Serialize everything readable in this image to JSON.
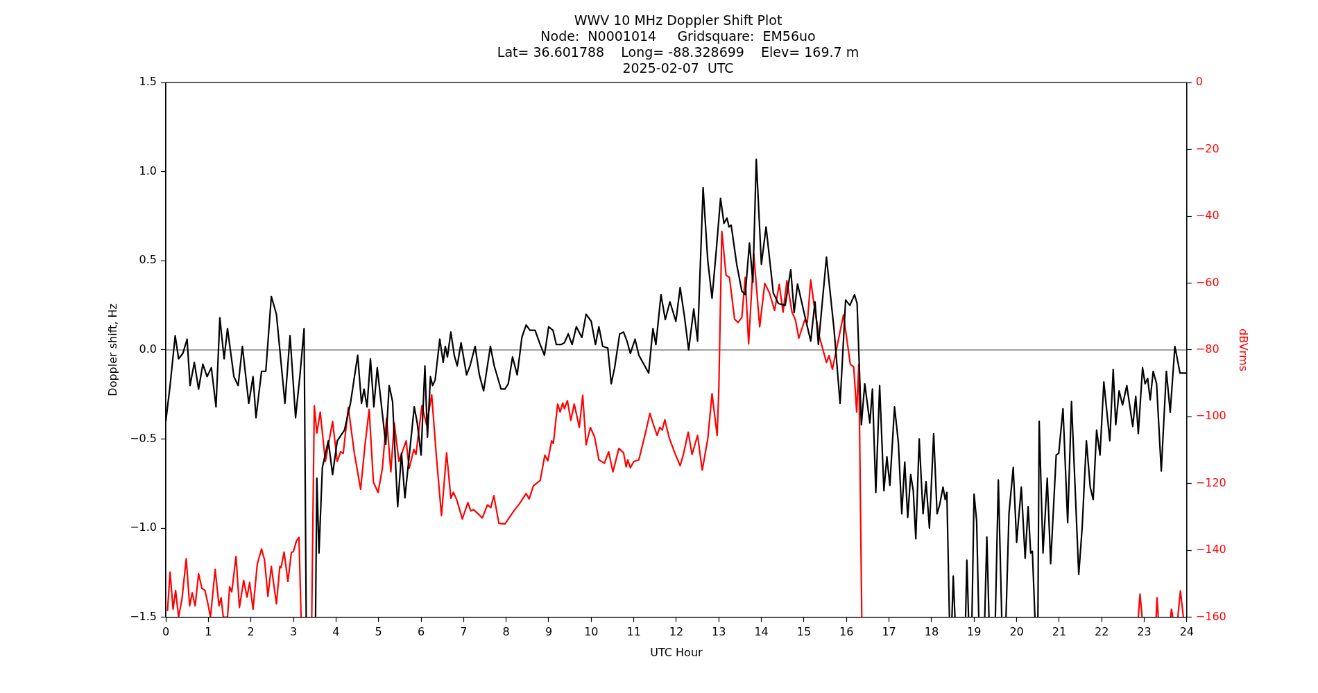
{
  "chart_data": {
    "type": "line",
    "title": "WWV 10 MHz Doppler Shift Plot\nNode:  N0001014     Gridsquare:  EM56uo\nLat= 36.601788    Long= -88.328699    Elev= 169.7 m\n2025-02-07  UTC",
    "xlabel": "UTC Hour",
    "ylabel": "Doppler shift, Hz",
    "y2label": "dBVrms",
    "xlim": [
      0,
      24
    ],
    "xticks": [
      0,
      1,
      2,
      3,
      4,
      5,
      6,
      7,
      8,
      9,
      10,
      11,
      12,
      13,
      14,
      15,
      16,
      17,
      18,
      19,
      20,
      21,
      22,
      23,
      24
    ],
    "ylim": [
      -1.5,
      1.5
    ],
    "yticks": [
      {
        "value": -1.5,
        "label": "−1.5"
      },
      {
        "value": -1,
        "label": "−1.0"
      },
      {
        "value": -0.5,
        "label": "−0.5"
      },
      {
        "value": 0,
        "label": "0.0"
      },
      {
        "value": 0.5,
        "label": "0.5"
      },
      {
        "value": 1,
        "label": "1.0"
      },
      {
        "value": 1.5,
        "label": "1.5"
      }
    ],
    "y2lim": [
      -160,
      0
    ],
    "y2ticks": [
      {
        "value": -160,
        "label": "−160"
      },
      {
        "value": -140,
        "label": "−140"
      },
      {
        "value": -120,
        "label": "−120"
      },
      {
        "value": -100,
        "label": "−100"
      },
      {
        "value": -80,
        "label": "−80"
      },
      {
        "value": -60,
        "label": "−60"
      },
      {
        "value": -40,
        "label": "−40"
      },
      {
        "value": -20,
        "label": "−20"
      },
      0
    ],
    "grid": false,
    "legend": false,
    "marker": "none",
    "line_style": "solid",
    "ref_lines": [
      {
        "axis": "y",
        "value": 0,
        "color": "#808080"
      }
    ],
    "series": [
      {
        "color": "#000000",
        "x": [
          0,
          0.1,
          0.22,
          0.3,
          0.4,
          0.5,
          0.57,
          0.67,
          0.77,
          0.87,
          0.97,
          1.07,
          1.18,
          1.27,
          1.37,
          1.45,
          1.6,
          1.7,
          1.8,
          1.95,
          2.05,
          2.12,
          2.25,
          2.35,
          2.48,
          2.6,
          2.8,
          2.92,
          3.05,
          3.15,
          3.25,
          3.3,
          3.4,
          3.52,
          3.55,
          3.6,
          3.68,
          3.82,
          3.92,
          4.03,
          4.2,
          4.34,
          4.51,
          4.6,
          4.66,
          4.73,
          4.81,
          4.89,
          4.97,
          5.17,
          5.25,
          5.33,
          5.45,
          5.54,
          5.62,
          5.84,
          5.91,
          6,
          6.09,
          6.15,
          6.22,
          6.27,
          6.33,
          6.44,
          6.52,
          6.57,
          6.62,
          6.7,
          6.78,
          6.85,
          6.94,
          7.07,
          7.15,
          7.27,
          7.37,
          7.47,
          7.63,
          7.72,
          7.88,
          7.97,
          8.05,
          8.15,
          8.26,
          8.37,
          8.47,
          8.56,
          8.68,
          8.8,
          8.9,
          9,
          9.1,
          9.18,
          9.29,
          9.37,
          9.46,
          9.55,
          9.65,
          9.78,
          9.88,
          10,
          10.1,
          10.18,
          10.27,
          10.39,
          10.47,
          10.55,
          10.67,
          10.76,
          10.84,
          10.92,
          11.03,
          11.12,
          11.35,
          11.45,
          11.52,
          11.64,
          11.74,
          11.85,
          11.99,
          12.09,
          12.19,
          12.29,
          12.41,
          12.5,
          12.63,
          12.74,
          12.84,
          12.94,
          13.04,
          13.12,
          13.19,
          13.24,
          13.29,
          13.42,
          13.54,
          13.62,
          13.72,
          13.8,
          13.88,
          14,
          14.11,
          14.28,
          14.4,
          14.56,
          14.69,
          14.77,
          14.85,
          15.05,
          15.16,
          15.26,
          15.34,
          15.53,
          15.71,
          15.85,
          15.98,
          16.08,
          16.19,
          16.25,
          16.35,
          16.43,
          16.55,
          16.61,
          16.69,
          16.78,
          16.88,
          16.95,
          17.02,
          17.13,
          17.22,
          17.3,
          17.37,
          17.44,
          17.51,
          17.57,
          17.63,
          17.71,
          17.8,
          17.87,
          17.95,
          18.05,
          18.13,
          18.19,
          18.27,
          18.32,
          18.36,
          18.42,
          18.46,
          18.48,
          18.51,
          18.55,
          18.7,
          18.8,
          18.83,
          18.87,
          18.92,
          18.95,
          19,
          19.06,
          19.11,
          19.2,
          19.25,
          19.3,
          19.35,
          19.42,
          19.5,
          19.57,
          19.65,
          19.7,
          19.75,
          19.82,
          19.92,
          20,
          20.11,
          20.2,
          20.27,
          20.33,
          20.37,
          20.43,
          20.46,
          20.5,
          20.53,
          20.62,
          20.72,
          20.8,
          20.93,
          20.99,
          21.09,
          21.2,
          21.29,
          21.46,
          21.54,
          21.64,
          21.73,
          21.8,
          21.88,
          21.96,
          22.05,
          22.19,
          22.27,
          22.33,
          22.41,
          22.49,
          22.59,
          22.73,
          22.8,
          22.86,
          22.96,
          23.02,
          23.08,
          23.14,
          23.21,
          23.29,
          23.4,
          23.52,
          23.61,
          23.72,
          23.84,
          23.92,
          24
        ],
        "values": [
          -0.4,
          -0.2,
          0.08,
          -0.05,
          -0.02,
          0.06,
          -0.2,
          -0.07,
          -0.22,
          -0.08,
          -0.15,
          -0.1,
          -0.32,
          0.18,
          -0.05,
          0.12,
          -0.15,
          -0.2,
          0.02,
          -0.3,
          -0.15,
          -0.38,
          -0.12,
          -0.12,
          0.3,
          0.2,
          -0.3,
          0.08,
          -0.38,
          -0.15,
          0.12,
          -1.5,
          null,
          -1.5,
          -0.72,
          -1.14,
          -0.66,
          -0.51,
          -0.7,
          -0.51,
          -0.45,
          -0.3,
          -0.03,
          -0.3,
          -0.22,
          -0.32,
          -0.05,
          -0.32,
          -0.1,
          -0.53,
          -0.2,
          -0.29,
          -0.88,
          -0.58,
          -0.83,
          -0.32,
          -0.41,
          -0.59,
          -0.09,
          -0.49,
          -0.15,
          -0.2,
          -0.17,
          0.06,
          -0.07,
          0.02,
          -0.04,
          0.1,
          -0.03,
          -0.09,
          0.04,
          -0.14,
          -0.09,
          0.02,
          -0.14,
          -0.23,
          0.02,
          -0.09,
          -0.22,
          -0.22,
          -0.19,
          -0.04,
          -0.14,
          0.07,
          0.14,
          0.11,
          0.11,
          0.03,
          -0.03,
          0.13,
          0.11,
          0.03,
          0.03,
          0.04,
          0.09,
          0.03,
          0.13,
          0.07,
          0.2,
          0.16,
          0.03,
          0.13,
          0.02,
          0.01,
          -0.19,
          -0.1,
          0.09,
          0.1,
          0.05,
          -0.02,
          0.06,
          -0.03,
          -0.13,
          0.12,
          0.03,
          0.31,
          0.17,
          0.27,
          0.16,
          0.35,
          0.19,
          0,
          0.23,
          0.05,
          0.91,
          0.5,
          0.29,
          0.56,
          0.85,
          0.71,
          0.74,
          0.69,
          0.7,
          0.48,
          0.33,
          0.31,
          0.6,
          0.38,
          1.07,
          0.48,
          0.69,
          0.32,
          0.26,
          0.25,
          0.45,
          0.21,
          0.37,
          0.16,
          0.05,
          0.27,
          0.03,
          0.52,
          0.11,
          -0.3,
          0.28,
          0.25,
          0.31,
          0.26,
          -0.42,
          -0.19,
          -0.41,
          -0.22,
          -0.8,
          -0.2,
          -0.79,
          -0.6,
          -0.76,
          -0.32,
          -0.52,
          -0.92,
          -0.63,
          -0.94,
          -0.7,
          -0.79,
          -1.06,
          -0.5,
          -0.92,
          -0.74,
          -1.0,
          -0.47,
          -0.92,
          -0.87,
          -0.77,
          -0.84,
          -0.8,
          -1.5,
          null,
          -1.5,
          -1.27,
          -1.5,
          null,
          -1.5,
          -1.18,
          -1.5,
          null,
          -1.5,
          -0.81,
          -0.96,
          -1.5,
          null,
          -1.5,
          -1.05,
          -1.5,
          null,
          -1.5,
          -0.73,
          -1.5,
          null,
          -1.5,
          -0.92,
          -0.66,
          -1.08,
          -0.77,
          -1.17,
          -0.88,
          -1.14,
          -1.13,
          -1.5,
          null,
          -1.5,
          -0.4,
          -1.14,
          -0.72,
          -1.2,
          -0.59,
          -0.58,
          -0.33,
          -0.97,
          -0.29,
          -1.26,
          -1.0,
          -0.51,
          -0.77,
          -0.84,
          -0.45,
          -0.59,
          -0.18,
          -0.51,
          -0.11,
          -0.42,
          -0.23,
          -0.31,
          -0.2,
          -0.43,
          -0.26,
          -0.47,
          -0.1,
          -0.19,
          -0.16,
          -0.28,
          -0.12,
          -0.19,
          -0.68,
          -0.12,
          -0.35,
          0.02,
          -0.13,
          -0.13,
          -0.13
        ]
      },
      {
        "color": "#ff0000",
        "axis": "y2",
        "x": [
          0.04,
          0.1,
          0.17,
          0.23,
          0.3,
          0.38,
          0.48,
          0.56,
          0.62,
          0.69,
          0.77,
          0.85,
          0.92,
          0.99,
          1.05,
          1.16,
          1.25,
          1.3,
          1.35,
          1.45,
          1.5,
          1.55,
          1.65,
          1.73,
          1.83,
          1.91,
          1.97,
          2.05,
          2.15,
          2.25,
          2.32,
          2.4,
          2.48,
          2.6,
          2.68,
          2.71,
          2.78,
          2.87,
          2.95,
          3,
          3.07,
          3.13,
          3.18,
          3.3,
          3.43,
          3.49,
          3.55,
          3.63,
          3.75,
          3.92,
          4.03,
          4.11,
          4.17,
          4.29,
          4.43,
          4.58,
          4.68,
          4.78,
          4.88,
          4.99,
          5.09,
          5.19,
          5.29,
          5.37,
          5.48,
          5.65,
          5.72,
          5.83,
          5.88,
          6.02,
          6.13,
          6.25,
          6.36,
          6.48,
          6.6,
          6.7,
          6.76,
          6.84,
          6.97,
          7.1,
          7.17,
          7.23,
          7.32,
          7.44,
          7.56,
          7.64,
          7.71,
          7.83,
          7.97,
          8.07,
          8.19,
          8.31,
          8.47,
          8.54,
          8.64,
          8.8,
          8.91,
          8.98,
          9.07,
          9.11,
          9.21,
          9.27,
          9.33,
          9.37,
          9.44,
          9.52,
          9.6,
          9.72,
          9.8,
          9.88,
          9.98,
          10.08,
          10.18,
          10.31,
          10.41,
          10.51,
          10.65,
          10.76,
          10.82,
          10.86,
          10.92,
          11,
          11.12,
          11.27,
          11.38,
          11.45,
          11.55,
          11.61,
          11.67,
          11.73,
          11.84,
          11.98,
          12.09,
          12.17,
          12.28,
          12.37,
          12.5,
          12.61,
          12.74,
          12.84,
          12.96,
          13,
          13.07,
          13.17,
          13.25,
          13.37,
          13.45,
          13.54,
          13.62,
          13.7,
          13.82,
          13.96,
          14.08,
          14.19,
          14.31,
          14.42,
          14.51,
          14.6,
          14.72,
          14.8,
          14.88,
          15.02,
          15.08,
          15.16,
          15.24,
          15.35,
          15.53,
          15.59,
          15.67,
          15.81,
          15.93,
          16.09,
          16.17,
          16.24,
          16.29,
          16.36,
          20,
          22.86,
          22.9,
          22.95,
          23.1,
          23.28,
          23.3,
          23.33,
          23.5,
          23.62,
          23.64,
          23.67,
          23.72,
          23.79,
          23.85,
          23.92
        ],
        "values": [
          -158,
          -146.5,
          -157.6,
          -152,
          -160,
          -154.5,
          -142.5,
          -156.6,
          -152.7,
          -156.6,
          -147,
          -151.4,
          -152,
          -156,
          -160,
          -145.7,
          -156.6,
          -154.2,
          -160,
          -160,
          -150.9,
          -152.4,
          -141.8,
          -157.1,
          -149,
          -154,
          -149.6,
          -157.6,
          -144.1,
          -139.6,
          -142.8,
          -153.8,
          -144.8,
          -156,
          -144.8,
          -145.2,
          -140.5,
          -149.3,
          -140.7,
          -140.3,
          -137.2,
          -136.1,
          -160,
          null,
          -160,
          -96.7,
          -104.9,
          -98.6,
          -113.4,
          -101.4,
          -113.4,
          -110.5,
          -111,
          -97.2,
          -110.8,
          -121.7,
          -108.7,
          -97.8,
          -119.6,
          -122.7,
          -115.5,
          -100.4,
          -116.5,
          -101.9,
          -113.4,
          -107.2,
          -115.5,
          -109.8,
          -111.3,
          -96.7,
          -102.4,
          -93.4,
          -111.9,
          -129.6,
          -110.8,
          -124.4,
          -122.6,
          -124.9,
          -130.6,
          -125.7,
          -128.2,
          -127.8,
          -128.8,
          -130.3,
          -126.4,
          -127.2,
          -123.6,
          -131.9,
          -132.1,
          -130.3,
          -128,
          -126.1,
          -123,
          -124.6,
          -120.7,
          -119.1,
          -111.5,
          -113.2,
          -107.2,
          -108,
          -96.2,
          -98.6,
          -95.9,
          -97.6,
          -95.2,
          -101.1,
          -96.2,
          -103.2,
          -93.6,
          -108.4,
          -103.2,
          -106.1,
          -112.9,
          -113.9,
          -110.5,
          -116.5,
          -109.5,
          -110.8,
          -115,
          -112.9,
          -115.3,
          -113.4,
          -112.9,
          -105.1,
          -99,
          -101.9,
          -105.6,
          -103.2,
          -104,
          -100.9,
          -106.6,
          -111.3,
          -114.7,
          -111.1,
          -104.6,
          -111.3,
          -105.6,
          -116,
          -106.6,
          -93.1,
          -105.6,
          -91.6,
          -44.5,
          -57.7,
          -58.3,
          -70.8,
          -71.8,
          -70.3,
          -58.3,
          -78.2,
          -51.2,
          -73.1,
          -60.1,
          -62.9,
          -68.2,
          -60.4,
          -68.7,
          -59.3,
          -68.7,
          -71,
          -76.5,
          -71,
          -71.8,
          -59.1,
          -66.6,
          -75.4,
          -83.8,
          -81.7,
          -85.8,
          -77,
          -69.5,
          -84.3,
          -85.1,
          -98.6,
          -84.3,
          -160,
          null,
          -160,
          -153.1,
          -160,
          null,
          -160,
          -154.2,
          -160,
          null,
          -160,
          -157.6,
          -160,
          null,
          -160,
          -152.1,
          -160
        ]
      }
    ]
  }
}
